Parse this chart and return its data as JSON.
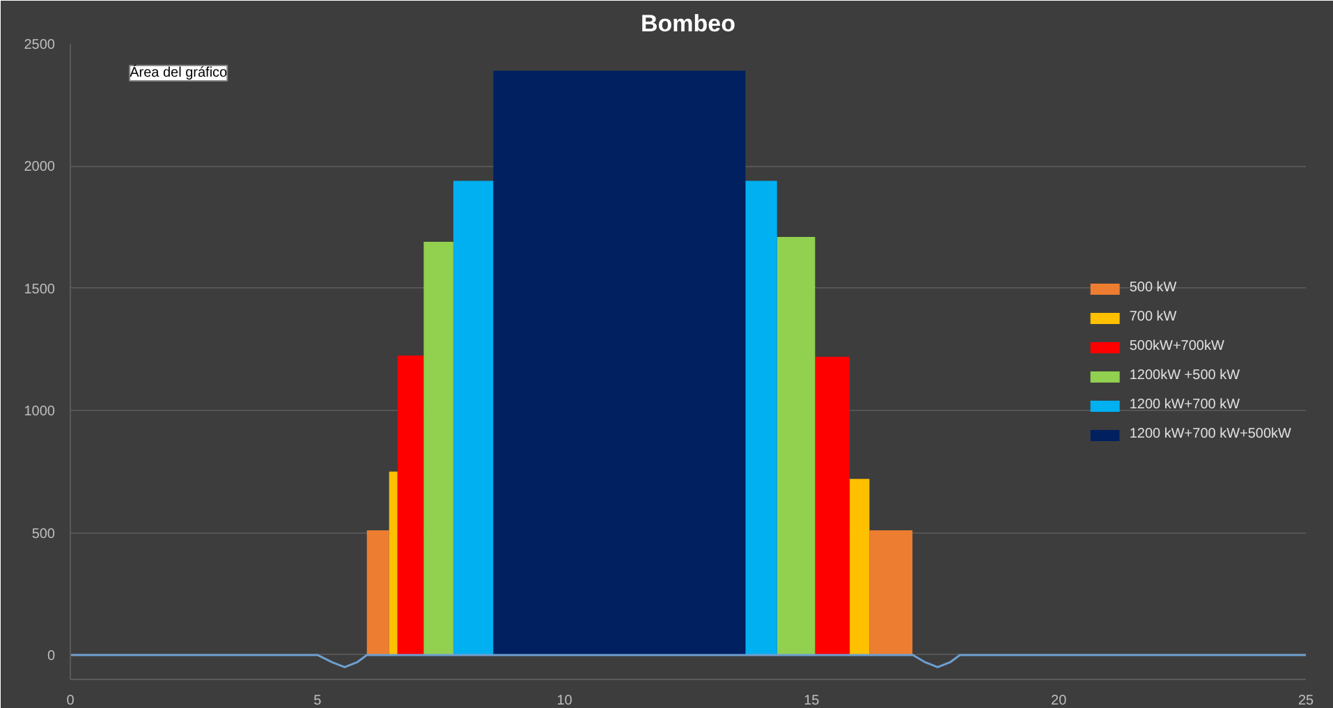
{
  "chart_data": {
    "type": "area",
    "title": "Bombeo",
    "annotations": [
      "Área del gráfico"
    ],
    "xlim": [
      0,
      25
    ],
    "xticks": [
      0,
      5,
      10,
      15,
      20,
      25
    ],
    "ylim": [
      -100,
      2500
    ],
    "yticks": [
      0,
      500,
      1000,
      1500,
      2000,
      2500
    ],
    "grid": "y",
    "legend": "right",
    "series": [
      {
        "name": "500 kW",
        "color": "#ed7d31",
        "x": [
          6.0,
          6.45,
          11,
          16.17,
          17.04
        ],
        "values": [
          510,
          510,
          null,
          510,
          510
        ]
      },
      {
        "name": "700 kW",
        "color": "#ffc000",
        "x": [
          6.45,
          6.62,
          11,
          15.77,
          16.17
        ],
        "values": [
          750,
          750,
          null,
          720,
          720
        ]
      },
      {
        "name": "500kW+700kW",
        "color": "#ff0000",
        "x": [
          6.62,
          7.15,
          11,
          15.07,
          15.77
        ],
        "values": [
          1225,
          1225,
          null,
          1220,
          1220
        ]
      },
      {
        "name": "1200kW +500 kW",
        "color": "#92d050",
        "x": [
          7.15,
          7.75,
          11,
          14.3,
          15.07
        ],
        "values": [
          1690,
          1690,
          null,
          1710,
          1710
        ]
      },
      {
        "name": "1200 kW+700 kW",
        "color": "#00b0f0",
        "x": [
          7.75,
          8.56,
          11,
          13.66,
          14.3
        ],
        "values": [
          1940,
          1940,
          null,
          1940,
          1940
        ]
      },
      {
        "name": "1200 kW+700 kW+500kW",
        "color": "#002060",
        "x": [
          8.56,
          13.66
        ],
        "values": [
          2390,
          2390
        ]
      },
      {
        "type": "line",
        "color": "#6f9fd0",
        "x": [
          0,
          5.0,
          5.3,
          5.55,
          5.8,
          6.0,
          17.05,
          17.3,
          17.55,
          17.8,
          18.0,
          25
        ],
        "values": [
          0,
          0,
          -30,
          -50,
          -30,
          0,
          0,
          -30,
          -50,
          -30,
          0,
          0
        ]
      }
    ]
  }
}
